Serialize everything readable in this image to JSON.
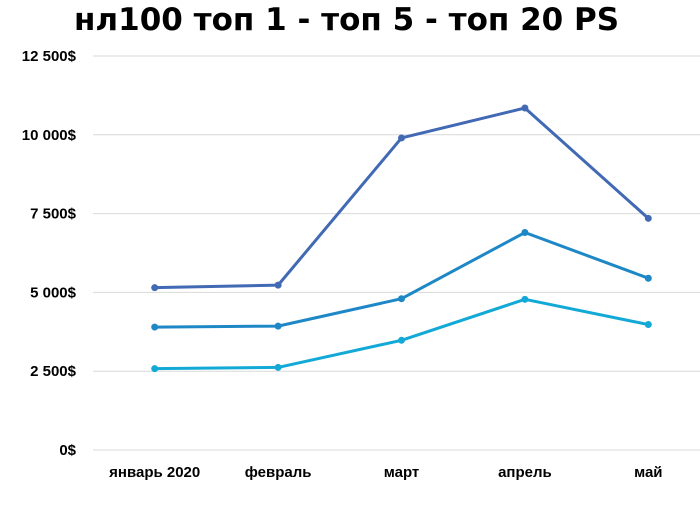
{
  "chart_data": {
    "type": "line",
    "title": "нл100 топ 1 - топ 5 - топ 20 PS",
    "xlabel": "",
    "ylabel": "",
    "categories": [
      "январь 2020",
      "февраль",
      "март",
      "апрель",
      "май"
    ],
    "ylim": [
      0,
      12500
    ],
    "yticks": [
      0,
      2500,
      5000,
      7500,
      10000,
      12500
    ],
    "ytick_labels": [
      "0$",
      "2 500$",
      "5 000$",
      "7 500$",
      "10 000$",
      "12 500$"
    ],
    "grid": true,
    "legend": "none",
    "series": [
      {
        "values": [
          5150,
          5230,
          9900,
          10850,
          7350
        ],
        "color": "#4169b4"
      },
      {
        "values": [
          3900,
          3930,
          4800,
          6900,
          5450
        ],
        "color": "#1e87c6"
      },
      {
        "values": [
          2580,
          2620,
          3480,
          4780,
          3980
        ],
        "color": "#13a9d6"
      }
    ]
  }
}
